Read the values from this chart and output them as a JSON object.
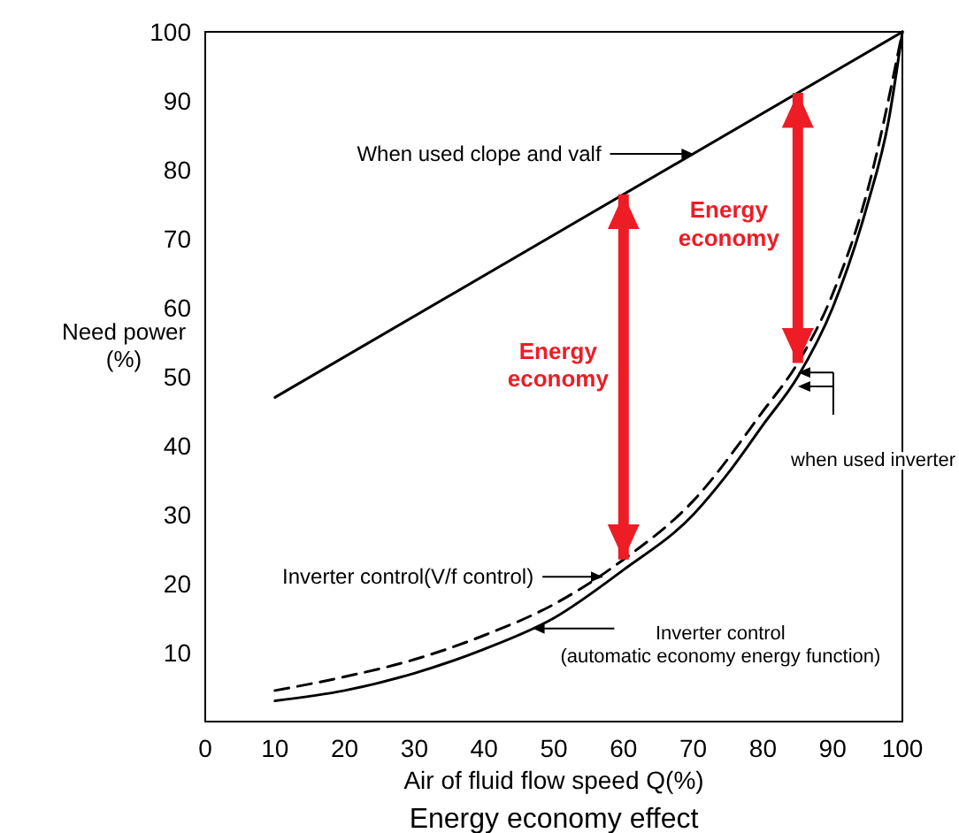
{
  "chart_data": {
    "type": "line",
    "title": "Energy economy effect",
    "xlabel": "Air of fluid flow speed Q(%)",
    "ylabel": "Need power\n(%)",
    "xlim": [
      0,
      100
    ],
    "xticks": [
      0,
      10,
      20,
      30,
      40,
      50,
      60,
      70,
      80,
      90,
      100
    ],
    "ylim": [
      0,
      100
    ],
    "yticks": [
      10,
      20,
      30,
      40,
      50,
      60,
      70,
      80,
      90,
      100
    ],
    "grid": false,
    "marker": "none",
    "series": [
      {
        "color": "#000000",
        "line_style": "solid",
        "x": [
          10,
          100
        ],
        "values": [
          47,
          100
        ]
      },
      {
        "color": "#000000",
        "line_style": "dashed",
        "x": [
          10,
          20,
          30,
          40,
          50,
          60,
          70,
          80,
          85,
          90,
          95,
          100
        ],
        "values": [
          4.5,
          6.5,
          9,
          12.5,
          17,
          23.5,
          32,
          45,
          52,
          62,
          77,
          100
        ]
      },
      {
        "color": "#000000",
        "line_style": "solid",
        "x": [
          10,
          20,
          30,
          40,
          50,
          60,
          70,
          75,
          80,
          85,
          90,
          95,
          98,
          100
        ],
        "values": [
          3,
          4.5,
          7,
          10.5,
          15,
          22,
          30,
          36,
          43,
          50,
          60,
          75,
          87,
          100
        ]
      }
    ],
    "annotations": [
      "Energy\neconomy",
      "Energy\neconomy",
      "When used clope and valf",
      "Inverter control(V/f control)",
      {
        "text": "Inverter control\n(automatic economy energy function)",
        "x": 47,
        "y": 13.5
      },
      "when used inverter"
    ]
  }
}
